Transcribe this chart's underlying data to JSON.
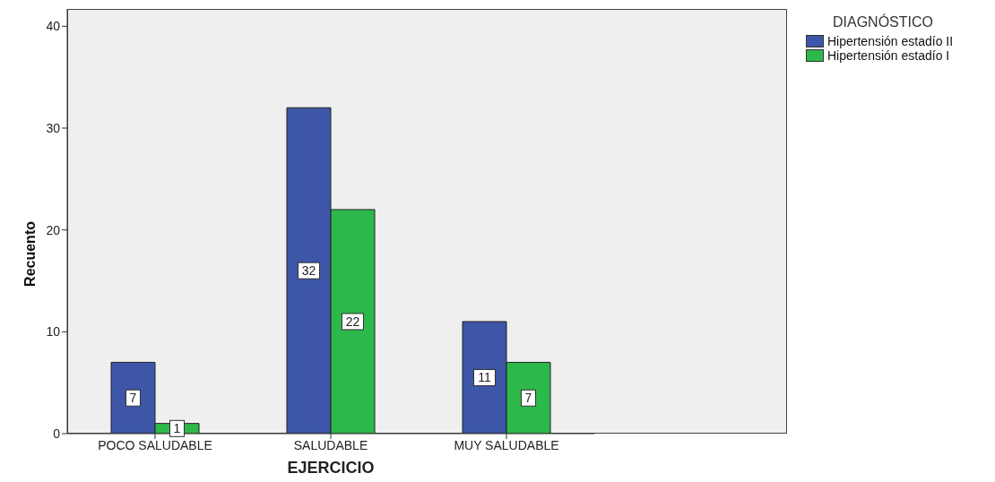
{
  "chart_data": {
    "type": "bar",
    "xlabel": "EJERCICIO",
    "ylabel": "Recuento",
    "legend_title": "DIAGNÓSTICO",
    "categories": [
      "POCO SALUDABLE",
      "SALUDABLE",
      "MUY SALUDABLE"
    ],
    "series": [
      {
        "name": "Hipertensión estadío II",
        "color": "#3d56a8",
        "values": [
          7,
          32,
          11
        ]
      },
      {
        "name": "Hipertensión estadío I",
        "color": "#2db84b",
        "values": [
          1,
          22,
          7
        ]
      }
    ],
    "ylim": [
      0,
      41.7
    ],
    "yticks": [
      0,
      10,
      20,
      30,
      40
    ],
    "grid": false,
    "legend": "top right",
    "data_labels": true
  }
}
